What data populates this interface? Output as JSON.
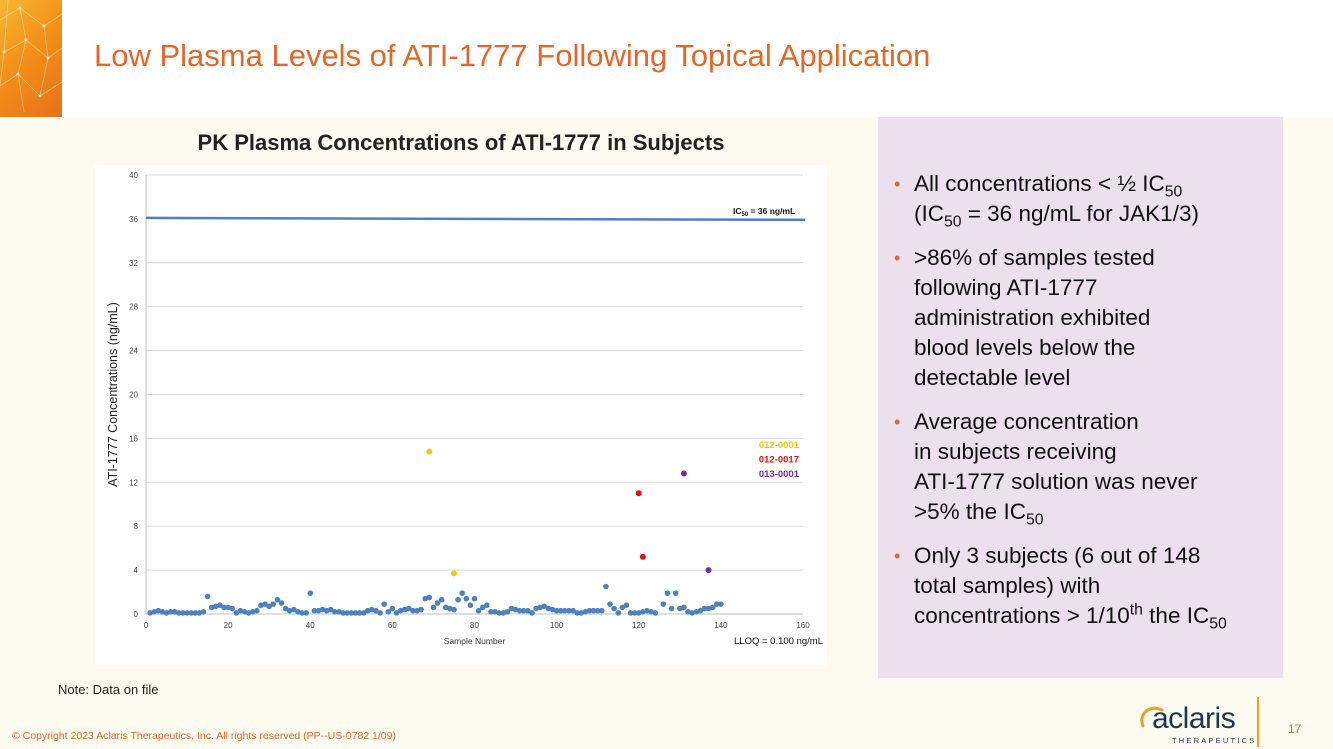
{
  "slide": {
    "title": "Low Plasma Levels of ATI-1777 Following Topical Application",
    "note": "Note: Data on file",
    "copyright": "© Copyright 2023 Aclaris Therapeutics, Inc. All rights reserved (PP--US-0782 1/09)",
    "page_number": "17",
    "logo_text": "aclaris",
    "logo_subtext": "THERAPEUTICS"
  },
  "bullets": [
    {
      "parts": [
        "All concentrations < ½ IC",
        {
          "sub": "50"
        },
        {
          "br": true
        },
        "(IC",
        {
          "sub": "50"
        },
        " = 36 ng/mL for JAK1/3)"
      ]
    },
    {
      "parts": [
        ">86% of samples tested",
        {
          "br": true
        },
        "following ATI-1777",
        {
          "br": true
        },
        "administration exhibited",
        {
          "br": true
        },
        "blood levels below the",
        {
          "br": true
        },
        "detectable level"
      ]
    },
    {
      "parts": [
        "Average concentration",
        {
          "br": true
        },
        "in subjects receiving",
        {
          "br": true
        },
        "ATI-1777 solution was never",
        {
          "br": true
        },
        ">5% the IC",
        {
          "sub": "50"
        }
      ]
    },
    {
      "parts": [
        "Only 3 subjects (6 out of 148",
        {
          "br": true
        },
        "total samples) with",
        {
          "br": true
        },
        "concentrations > 1/10",
        {
          "sup": "th"
        },
        " the IC",
        {
          "sub": "50"
        }
      ]
    }
  ],
  "colors": {
    "accent": "#e2672a",
    "baseline_points": "#4f81bd",
    "ic50_line": "#4f81bd",
    "subject_012_0001": "#f5c518",
    "subject_012_0017": "#e0101a",
    "subject_013_0001": "#7030a0"
  },
  "chart_data": {
    "type": "scatter",
    "title": "PK Plasma Concentrations of ATI-1777 in Subjects",
    "xlabel": "Sample Number",
    "ylabel": "ATI-1777 Concentrations (ng/mL)",
    "xlim": [
      0,
      160
    ],
    "ylim": [
      0,
      40
    ],
    "xticks": [
      0,
      20,
      40,
      60,
      80,
      100,
      120,
      140,
      160
    ],
    "yticks": [
      0,
      4,
      8,
      12,
      16,
      20,
      24,
      28,
      32,
      36,
      40
    ],
    "grid": true,
    "reference_line": {
      "y": 36,
      "label_prefix": "IC",
      "label_sub": "50",
      "label_suffix": " = 36 ng/mL"
    },
    "annotation": "LLOQ = 0.100 ng/mL",
    "legend_position": "right",
    "series": [
      {
        "color_key": "baseline_points",
        "points": [
          [
            1,
            0.1
          ],
          [
            2,
            0.2
          ],
          [
            3,
            0.3
          ],
          [
            4,
            0.2
          ],
          [
            5,
            0.1
          ],
          [
            6,
            0.2
          ],
          [
            7,
            0.2
          ],
          [
            8,
            0.1
          ],
          [
            9,
            0.1
          ],
          [
            10,
            0.1
          ],
          [
            11,
            0.1
          ],
          [
            12,
            0.1
          ],
          [
            13,
            0.1
          ],
          [
            14,
            0.2
          ],
          [
            15,
            1.6
          ],
          [
            16,
            0.6
          ],
          [
            17,
            0.7
          ],
          [
            18,
            0.8
          ],
          [
            19,
            0.6
          ],
          [
            20,
            0.6
          ],
          [
            21,
            0.5
          ],
          [
            22,
            0.1
          ],
          [
            23,
            0.3
          ],
          [
            24,
            0.2
          ],
          [
            25,
            0.1
          ],
          [
            26,
            0.2
          ],
          [
            27,
            0.3
          ],
          [
            28,
            0.8
          ],
          [
            29,
            0.9
          ],
          [
            30,
            0.7
          ],
          [
            31,
            0.9
          ],
          [
            32,
            1.3
          ],
          [
            33,
            1.0
          ],
          [
            34,
            0.5
          ],
          [
            35,
            0.3
          ],
          [
            36,
            0.4
          ],
          [
            37,
            0.2
          ],
          [
            38,
            0.1
          ],
          [
            39,
            0.1
          ],
          [
            40,
            1.9
          ],
          [
            41,
            0.3
          ],
          [
            42,
            0.3
          ],
          [
            43,
            0.4
          ],
          [
            44,
            0.3
          ],
          [
            45,
            0.4
          ],
          [
            46,
            0.2
          ],
          [
            47,
            0.2
          ],
          [
            48,
            0.1
          ],
          [
            49,
            0.1
          ],
          [
            50,
            0.1
          ],
          [
            51,
            0.1
          ],
          [
            52,
            0.1
          ],
          [
            53,
            0.1
          ],
          [
            54,
            0.3
          ],
          [
            55,
            0.4
          ],
          [
            56,
            0.3
          ],
          [
            57,
            0.1
          ],
          [
            58,
            0.9
          ],
          [
            59,
            0.2
          ],
          [
            60,
            0.5
          ],
          [
            61,
            0.1
          ],
          [
            62,
            0.3
          ],
          [
            63,
            0.4
          ],
          [
            64,
            0.5
          ],
          [
            65,
            0.3
          ],
          [
            66,
            0.3
          ],
          [
            67,
            0.4
          ],
          [
            68,
            1.4
          ],
          [
            69,
            1.5
          ],
          [
            70,
            0.6
          ],
          [
            71,
            1.0
          ],
          [
            72,
            1.3
          ],
          [
            73,
            0.6
          ],
          [
            74,
            0.5
          ],
          [
            75,
            0.4
          ],
          [
            76,
            1.3
          ],
          [
            77,
            1.9
          ],
          [
            78,
            1.4
          ],
          [
            79,
            0.8
          ],
          [
            80,
            1.4
          ],
          [
            81,
            0.3
          ],
          [
            82,
            0.6
          ],
          [
            83,
            0.8
          ],
          [
            84,
            0.2
          ],
          [
            85,
            0.2
          ],
          [
            86,
            0.1
          ],
          [
            87,
            0.1
          ],
          [
            88,
            0.2
          ],
          [
            89,
            0.5
          ],
          [
            90,
            0.4
          ],
          [
            91,
            0.3
          ],
          [
            92,
            0.3
          ],
          [
            93,
            0.3
          ],
          [
            94,
            0.1
          ],
          [
            95,
            0.5
          ],
          [
            96,
            0.6
          ],
          [
            97,
            0.7
          ],
          [
            98,
            0.5
          ],
          [
            99,
            0.4
          ],
          [
            100,
            0.3
          ],
          [
            101,
            0.3
          ],
          [
            102,
            0.3
          ],
          [
            103,
            0.3
          ],
          [
            104,
            0.3
          ],
          [
            105,
            0.1
          ],
          [
            106,
            0.1
          ],
          [
            107,
            0.2
          ],
          [
            108,
            0.3
          ],
          [
            109,
            0.3
          ],
          [
            110,
            0.3
          ],
          [
            111,
            0.3
          ],
          [
            112,
            2.5
          ],
          [
            113,
            0.9
          ],
          [
            114,
            0.5
          ],
          [
            115,
            0.1
          ],
          [
            116,
            0.6
          ],
          [
            117,
            0.8
          ],
          [
            118,
            0.1
          ],
          [
            119,
            0.1
          ],
          [
            120,
            0.1
          ],
          [
            121,
            0.2
          ],
          [
            122,
            0.3
          ],
          [
            123,
            0.2
          ],
          [
            124,
            0.1
          ],
          [
            126,
            0.9
          ],
          [
            127,
            1.9
          ],
          [
            128,
            0.5
          ],
          [
            129,
            1.9
          ],
          [
            130,
            0.5
          ],
          [
            131,
            0.6
          ],
          [
            132,
            0.2
          ],
          [
            133,
            0.1
          ],
          [
            134,
            0.2
          ],
          [
            135,
            0.3
          ],
          [
            136,
            0.5
          ],
          [
            137,
            0.5
          ],
          [
            138,
            0.6
          ],
          [
            139,
            0.9
          ],
          [
            140,
            0.9
          ]
        ]
      },
      {
        "name": "012-0001",
        "color_key": "subject_012_0001",
        "points": [
          [
            69,
            14.8
          ],
          [
            75,
            3.7
          ]
        ]
      },
      {
        "name": "012-0017",
        "color_key": "subject_012_0017",
        "points": [
          [
            120,
            11.0
          ],
          [
            121,
            5.2
          ]
        ]
      },
      {
        "name": "013-0001",
        "color_key": "subject_013_0001",
        "points": [
          [
            131,
            12.8
          ],
          [
            137,
            4.0
          ]
        ]
      }
    ]
  }
}
